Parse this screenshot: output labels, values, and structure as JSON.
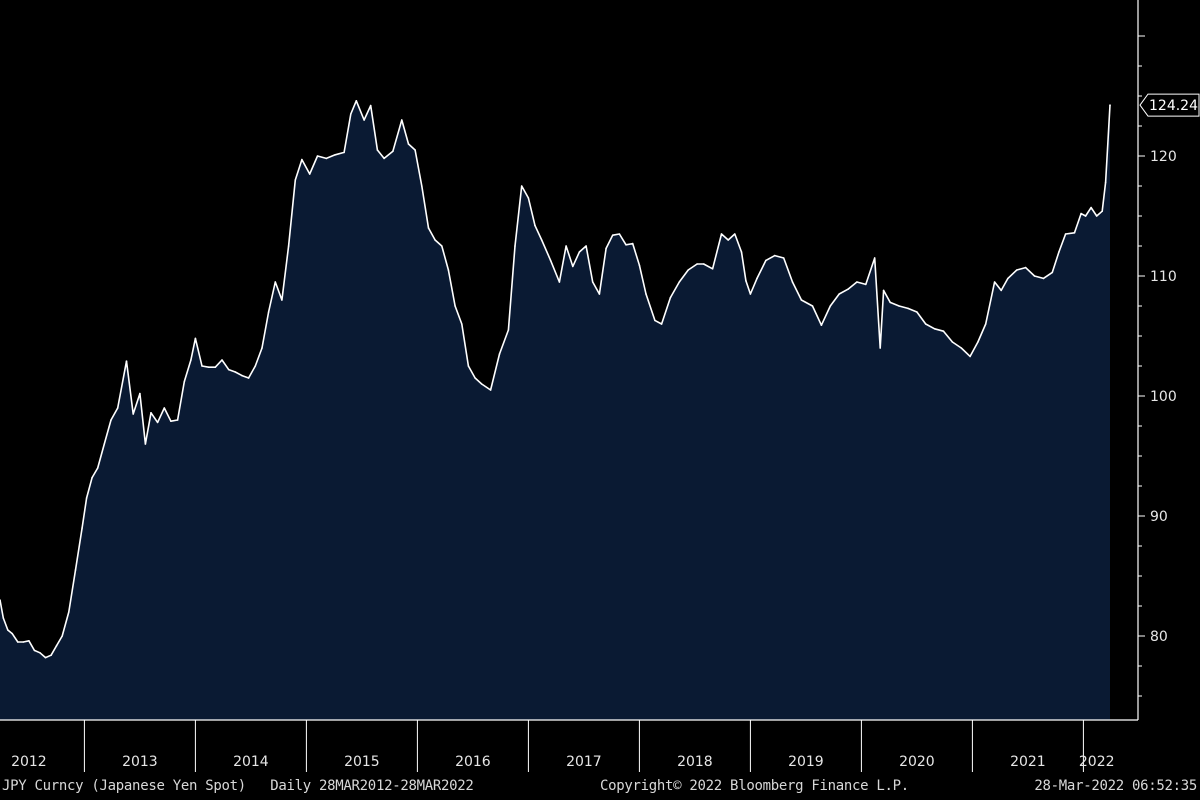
{
  "footer": {
    "security": "JPY Curncy (Japanese Yen Spot)",
    "range": "Daily 28MAR2012-28MAR2022",
    "copyright": "Copyright© 2022 Bloomberg Finance L.P.",
    "timestamp": "28-Mar-2022 06:52:35"
  },
  "colors": {
    "background": "#000000",
    "area_fill": "#0a1a33",
    "line": "#ffffff",
    "axis": "#ffffff"
  },
  "chart_data": {
    "type": "area",
    "title": "",
    "xlabel": "",
    "ylabel": "",
    "ylim": [
      73,
      133
    ],
    "xlim": [
      2012.24,
      2022.24
    ],
    "y_ticks": [
      80,
      90,
      100,
      110,
      120
    ],
    "x_tick_labels": [
      "2012",
      "2013",
      "2014",
      "2015",
      "2016",
      "2017",
      "2018",
      "2019",
      "2020",
      "2021",
      "2022"
    ],
    "x_ticks": [
      2012.5,
      2013.5,
      2014.5,
      2015.5,
      2016.5,
      2017.5,
      2018.5,
      2019.5,
      2020.5,
      2021.5,
      2022.12
    ],
    "year_dividers": [
      2013,
      2014,
      2015,
      2016,
      2017,
      2018,
      2019,
      2020,
      2021,
      2022
    ],
    "last_value_label": "124.24",
    "grid": false,
    "series": [
      {
        "values": [
          [
            2012.24,
            83.0
          ],
          [
            2012.27,
            81.5
          ],
          [
            2012.31,
            80.5
          ],
          [
            2012.35,
            80.2
          ],
          [
            2012.4,
            79.5
          ],
          [
            2012.45,
            79.5
          ],
          [
            2012.5,
            79.6
          ],
          [
            2012.55,
            78.8
          ],
          [
            2012.6,
            78.6
          ],
          [
            2012.65,
            78.2
          ],
          [
            2012.7,
            78.4
          ],
          [
            2012.75,
            79.2
          ],
          [
            2012.8,
            80.0
          ],
          [
            2012.86,
            82.0
          ],
          [
            2012.92,
            85.5
          ],
          [
            2012.98,
            89.0
          ],
          [
            2013.02,
            91.5
          ],
          [
            2013.07,
            93.2
          ],
          [
            2013.12,
            94.0
          ],
          [
            2013.18,
            96.0
          ],
          [
            2013.24,
            98.0
          ],
          [
            2013.3,
            99.0
          ],
          [
            2013.38,
            102.9
          ],
          [
            2013.44,
            98.5
          ],
          [
            2013.5,
            100.2
          ],
          [
            2013.55,
            96.0
          ],
          [
            2013.6,
            98.6
          ],
          [
            2013.66,
            97.8
          ],
          [
            2013.72,
            99.0
          ],
          [
            2013.78,
            97.9
          ],
          [
            2013.84,
            98.0
          ],
          [
            2013.9,
            101.2
          ],
          [
            2013.96,
            103.0
          ],
          [
            2014.0,
            104.8
          ],
          [
            2014.06,
            102.5
          ],
          [
            2014.12,
            102.4
          ],
          [
            2014.18,
            102.4
          ],
          [
            2014.24,
            103.0
          ],
          [
            2014.3,
            102.2
          ],
          [
            2014.36,
            102.0
          ],
          [
            2014.42,
            101.7
          ],
          [
            2014.48,
            101.5
          ],
          [
            2014.54,
            102.5
          ],
          [
            2014.6,
            104.0
          ],
          [
            2014.66,
            107.0
          ],
          [
            2014.72,
            109.5
          ],
          [
            2014.78,
            108.0
          ],
          [
            2014.84,
            112.5
          ],
          [
            2014.9,
            118.0
          ],
          [
            2014.96,
            119.7
          ],
          [
            2015.03,
            118.5
          ],
          [
            2015.1,
            120.0
          ],
          [
            2015.18,
            119.8
          ],
          [
            2015.26,
            120.1
          ],
          [
            2015.34,
            120.3
          ],
          [
            2015.4,
            123.5
          ],
          [
            2015.45,
            124.6
          ],
          [
            2015.52,
            123.0
          ],
          [
            2015.58,
            124.2
          ],
          [
            2015.64,
            120.5
          ],
          [
            2015.7,
            119.8
          ],
          [
            2015.78,
            120.4
          ],
          [
            2015.86,
            123.0
          ],
          [
            2015.92,
            121.0
          ],
          [
            2015.98,
            120.5
          ],
          [
            2016.04,
            117.5
          ],
          [
            2016.1,
            114.0
          ],
          [
            2016.16,
            113.0
          ],
          [
            2016.22,
            112.5
          ],
          [
            2016.28,
            110.5
          ],
          [
            2016.34,
            107.5
          ],
          [
            2016.4,
            106.0
          ],
          [
            2016.46,
            102.5
          ],
          [
            2016.52,
            101.5
          ],
          [
            2016.58,
            101.0
          ],
          [
            2016.66,
            100.5
          ],
          [
            2016.74,
            103.5
          ],
          [
            2016.82,
            105.5
          ],
          [
            2016.88,
            112.5
          ],
          [
            2016.94,
            117.5
          ],
          [
            2017.0,
            116.5
          ],
          [
            2017.06,
            114.2
          ],
          [
            2017.12,
            113.0
          ],
          [
            2017.2,
            111.3
          ],
          [
            2017.28,
            109.5
          ],
          [
            2017.34,
            112.5
          ],
          [
            2017.4,
            110.8
          ],
          [
            2017.46,
            112.0
          ],
          [
            2017.52,
            112.5
          ],
          [
            2017.58,
            109.5
          ],
          [
            2017.64,
            108.5
          ],
          [
            2017.7,
            112.3
          ],
          [
            2017.76,
            113.4
          ],
          [
            2017.82,
            113.5
          ],
          [
            2017.88,
            112.6
          ],
          [
            2017.94,
            112.7
          ],
          [
            2018.0,
            110.9
          ],
          [
            2018.06,
            108.5
          ],
          [
            2018.14,
            106.3
          ],
          [
            2018.2,
            106.0
          ],
          [
            2018.28,
            108.2
          ],
          [
            2018.36,
            109.5
          ],
          [
            2018.44,
            110.5
          ],
          [
            2018.52,
            111.0
          ],
          [
            2018.58,
            111.0
          ],
          [
            2018.66,
            110.6
          ],
          [
            2018.74,
            113.5
          ],
          [
            2018.8,
            113.0
          ],
          [
            2018.86,
            113.5
          ],
          [
            2018.92,
            112.0
          ],
          [
            2018.96,
            109.6
          ],
          [
            2019.0,
            108.5
          ],
          [
            2019.06,
            109.8
          ],
          [
            2019.14,
            111.3
          ],
          [
            2019.22,
            111.7
          ],
          [
            2019.3,
            111.5
          ],
          [
            2019.38,
            109.5
          ],
          [
            2019.46,
            108.0
          ],
          [
            2019.56,
            107.5
          ],
          [
            2019.64,
            105.9
          ],
          [
            2019.72,
            107.5
          ],
          [
            2019.8,
            108.5
          ],
          [
            2019.88,
            108.9
          ],
          [
            2019.96,
            109.5
          ],
          [
            2020.04,
            109.3
          ],
          [
            2020.12,
            111.5
          ],
          [
            2020.17,
            104.0
          ],
          [
            2020.2,
            108.8
          ],
          [
            2020.26,
            107.8
          ],
          [
            2020.34,
            107.5
          ],
          [
            2020.42,
            107.3
          ],
          [
            2020.5,
            107.0
          ],
          [
            2020.58,
            106.0
          ],
          [
            2020.66,
            105.6
          ],
          [
            2020.74,
            105.4
          ],
          [
            2020.82,
            104.5
          ],
          [
            2020.9,
            104.0
          ],
          [
            2020.98,
            103.3
          ],
          [
            2021.05,
            104.5
          ],
          [
            2021.12,
            106.0
          ],
          [
            2021.2,
            109.5
          ],
          [
            2021.26,
            108.8
          ],
          [
            2021.32,
            109.8
          ],
          [
            2021.4,
            110.5
          ],
          [
            2021.48,
            110.7
          ],
          [
            2021.56,
            110.0
          ],
          [
            2021.64,
            109.8
          ],
          [
            2021.72,
            110.3
          ],
          [
            2021.78,
            112.0
          ],
          [
            2021.84,
            113.5
          ],
          [
            2021.92,
            113.6
          ],
          [
            2021.98,
            115.2
          ],
          [
            2022.02,
            115.0
          ],
          [
            2022.07,
            115.7
          ],
          [
            2022.12,
            115.0
          ],
          [
            2022.17,
            115.4
          ],
          [
            2022.2,
            117.8
          ],
          [
            2022.22,
            121.0
          ],
          [
            2022.24,
            124.24
          ]
        ]
      }
    ]
  }
}
